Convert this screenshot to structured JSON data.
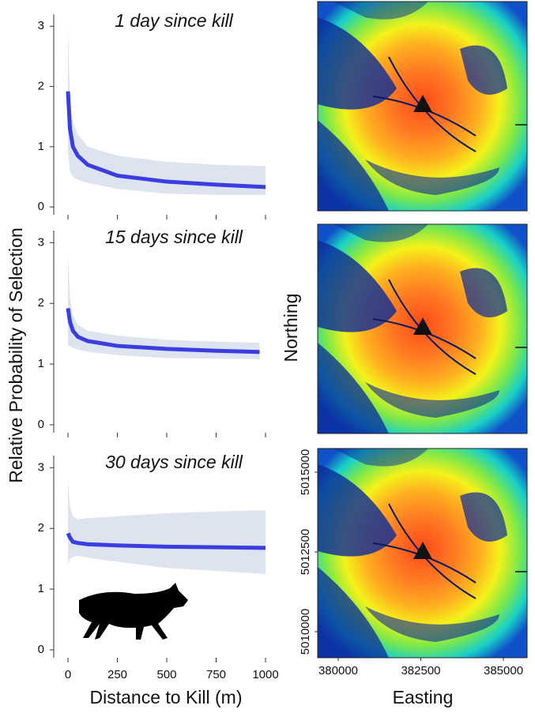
{
  "ylabel": "Relative Probability of Selection",
  "chart_data": [
    {
      "type": "line",
      "title": "1 day since kill",
      "x": [
        0,
        10,
        25,
        50,
        100,
        250,
        500,
        750,
        1000
      ],
      "series": [
        {
          "color": "#3a3de0",
          "band_color": "#dde3ef",
          "values": [
            1.92,
            1.3,
            1.0,
            0.85,
            0.7,
            0.52,
            0.42,
            0.37,
            0.33
          ],
          "band_lower": [
            0.9,
            0.6,
            0.5,
            0.45,
            0.4,
            0.3,
            0.22,
            0.2,
            0.2
          ],
          "band_upper": [
            3.0,
            1.8,
            1.4,
            1.2,
            1.0,
            0.85,
            0.75,
            0.7,
            0.68
          ]
        }
      ],
      "xlim": [
        -72,
        1036
      ],
      "ylim": [
        -0.13,
        3.2
      ],
      "yticks": [
        0,
        1,
        2,
        3
      ]
    },
    {
      "type": "line",
      "title": "15 days since kill",
      "x": [
        0,
        10,
        25,
        50,
        100,
        250,
        500,
        750,
        970
      ],
      "series": [
        {
          "color": "#3a3de0",
          "band_color": "#dde3ef",
          "values": [
            1.92,
            1.7,
            1.55,
            1.45,
            1.38,
            1.3,
            1.25,
            1.22,
            1.2
          ],
          "band_lower": [
            1.3,
            1.3,
            1.27,
            1.24,
            1.2,
            1.15,
            1.1,
            1.09,
            1.08
          ],
          "band_upper": [
            2.8,
            2.1,
            1.8,
            1.65,
            1.55,
            1.47,
            1.4,
            1.37,
            1.35
          ]
        }
      ],
      "xlim": [
        -72,
        1036
      ],
      "ylim": [
        -0.13,
        3.2
      ],
      "yticks": [
        0,
        1,
        2,
        3
      ]
    },
    {
      "type": "line",
      "title": "30 days since kill",
      "xlabel": "Distance to Kill (m)",
      "x": [
        0,
        10,
        25,
        50,
        100,
        250,
        500,
        750,
        1000
      ],
      "series": [
        {
          "color": "#3a3de0",
          "band_color": "#dde3ef",
          "values": [
            1.92,
            1.85,
            1.78,
            1.76,
            1.74,
            1.72,
            1.7,
            1.69,
            1.68
          ],
          "band_lower": [
            1.4,
            1.5,
            1.53,
            1.55,
            1.52,
            1.45,
            1.35,
            1.3,
            1.25
          ],
          "band_upper": [
            2.8,
            2.35,
            2.2,
            2.15,
            2.17,
            2.2,
            2.25,
            2.28,
            2.3
          ]
        }
      ],
      "xlim": [
        -72,
        1036
      ],
      "ylim": [
        -0.13,
        3.2
      ],
      "yticks": [
        0,
        1,
        2,
        3
      ],
      "xticks": [
        0,
        250,
        500,
        750,
        1000
      ]
    }
  ],
  "maps": {
    "ylabel": "Northing",
    "xlabel": "Easting",
    "xlim": [
      379378,
      385717
    ],
    "ylim": [
      5009183,
      5015767
    ],
    "xticks": [
      380000,
      382500,
      385000
    ],
    "yticks": [
      5010000,
      5012500,
      5015000
    ]
  }
}
